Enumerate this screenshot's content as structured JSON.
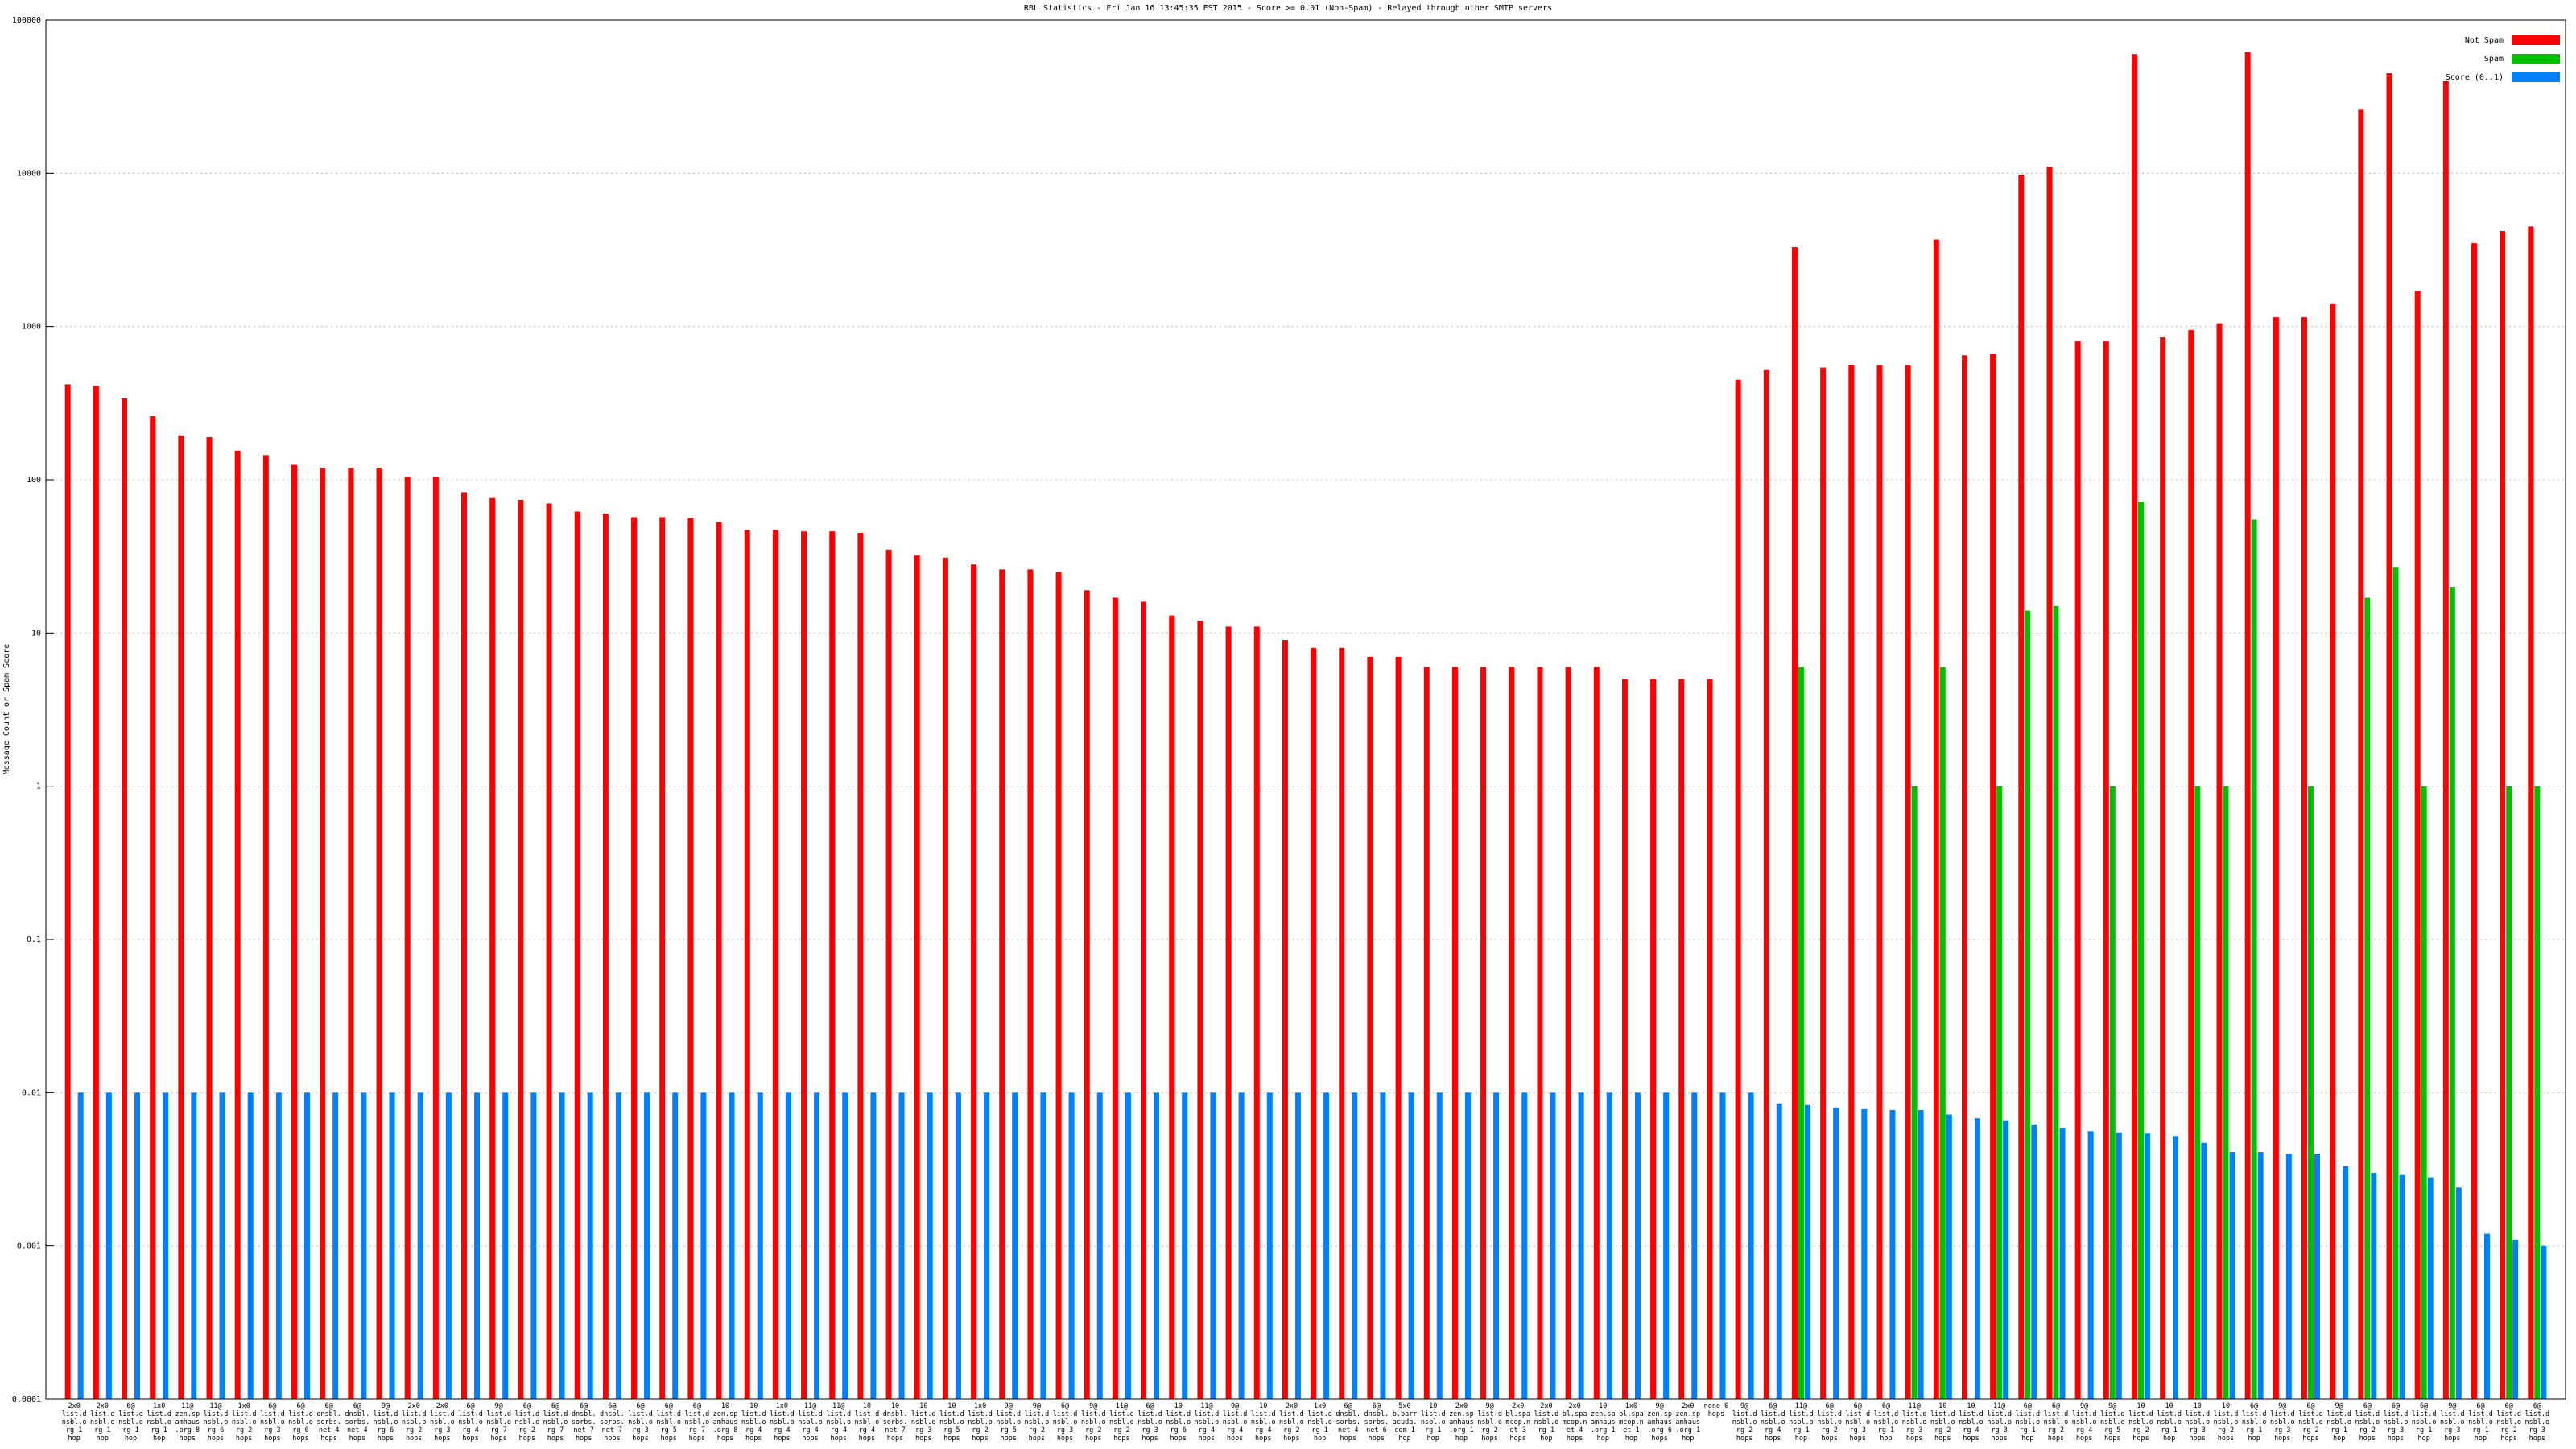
{
  "chart_data": {
    "type": "bar",
    "title": "RBL Statistics - Fri Jan 16 13:45:35 EST 2015 - Score >= 0.01 (Non-Spam) - Relayed through other SMTP servers",
    "y_label": "Message Count or Spam Score",
    "log": true,
    "grid": true,
    "legend": "top-right",
    "ylim": [
      0.0001,
      100000
    ],
    "yticks": [
      0.0001,
      0.001,
      0.01,
      0.1,
      1,
      10,
      100,
      1000,
      10000,
      100000
    ],
    "categories": [
      "2x0 list.dnsbl.org 1 hop",
      "2x0 list.dnsbl.org 1 hop",
      "6@ list.dnsbl.org 1 hop",
      "1x0 list.dnsbl.org 1 hop",
      "11@ zen.spamhaus.org 8 hops",
      "11@ list.dnsbl.org 6 hops",
      "1x0 list.dnsbl.org 2 hops",
      "6@ list.dnsbl.org 3 hops",
      "6@ list.dnsbl.org 6 hops",
      "6@ dnsbl.sorbs.net 4 hops",
      "6@ dnsbl.sorbs.net 4 hops",
      "9@ list.dnsbl.org 6 hops",
      "2x0 list.dnsbl.org 2 hops",
      "2x0 list.dnsbl.org 3 hops",
      "6@ list.dnsbl.org 4 hops",
      "9@ list.dnsbl.org 7 hops",
      "6@ list.dnsbl.org 2 hops",
      "6@ list.dnsbl.org 7 hops",
      "6@ dnsbl.sorbs.net 7 hops",
      "6@ dnsbl.sorbs.net 7 hops",
      "6@ list.dnsbl.org 3 hops",
      "6@ list.dnsbl.org 5 hops",
      "6@ list.dnsbl.org 7 hops",
      "10 zen.spamhaus.org 8 hops",
      "10 list.dnsbl.org 4 hops",
      "1x0 list.dnsbl.org 4 hops",
      "11@ list.dnsbl.org 4 hops",
      "11@ list.dnsbl.org 4 hops",
      "10 list.dnsbl.org 4 hops",
      "10 dnsbl.sorbs.net 7 hops",
      "10 list.dnsbl.org 3 hops",
      "10 list.dnsbl.org 5 hops",
      "1x0 list.dnsbl.org 2 hops",
      "9@ list.dnsbl.org 5 hops",
      "9@ list.dnsbl.org 2 hops",
      "6@ list.dnsbl.org 3 hops",
      "9@ list.dnsbl.org 2 hops",
      "11@ list.dnsbl.org 2 hops",
      "6@ list.dnsbl.org 3 hops",
      "10 list.dnsbl.org 6 hops",
      "11@ list.dnsbl.org 4 hops",
      "9@ list.dnsbl.org 4 hops",
      "10 list.dnsbl.org 4 hops",
      "2x0 list.dnsbl.org 2 hops",
      "1x0 list.dnsbl.org 1 hop",
      "6@ dnsbl.sorbs.net 4 hops",
      "6@ dnsbl.sorbs.net 6 hops",
      "5x0 b.barracuda.com 1 hop",
      "10 list.dnsbl.org 1 hop",
      "2x0 zen.spamhaus.org 1 hop",
      "9@ list.dnsbl.org 2 hops",
      "2x0 bl.spamcop.net 3 hops",
      "2x0 list.dnsbl.org 1 hop",
      "2x0 bl.spamcop.net 4 hops",
      "10 zen.spamhaus.org 1 hop",
      "1x0 bl.spamcop.net 1 hop",
      "9@ zen.spamhaus.org 6 hops",
      "2x0 zen.spamhaus.org 1 hop",
      "none 0 hops",
      "9@ list.dnsbl.org 2 hops",
      "6@ list.dnsbl.org 4 hops",
      "11@ list.dnsbl.org 1 hop",
      "6@ list.dnsbl.org 2 hops",
      "6@ list.dnsbl.org 3 hops",
      "6@ list.dnsbl.org 1 hop",
      "11@ list.dnsbl.org 3 hops",
      "10 list.dnsbl.org 2 hops",
      "10 list.dnsbl.org 4 hops",
      "11@ list.dnsbl.org 3 hops",
      "6@ list.dnsbl.org 1 hop",
      "6@ list.dnsbl.org 2 hops",
      "9@ list.dnsbl.org 4 hops",
      "9@ list.dnsbl.org 5 hops",
      "10 list.dnsbl.org 2 hops",
      "10 list.dnsbl.org 1 hop",
      "10 list.dnsbl.org 3 hops",
      "10 list.dnsbl.org 2 hops",
      "6@ list.dnsbl.org 1 hop",
      "9@ list.dnsbl.org 3 hops",
      "6@ list.dnsbl.org 2 hops",
      "9@ list.dnsbl.org 1 hop",
      "6@ list.dnsbl.org 2 hops",
      "6@ list.dnsbl.org 3 hops",
      "6@ list.dnsbl.org 1 hop",
      "9@ list.dnsbl.org 3 hops",
      "6@ list.dnsbl.org 1 hop",
      "6@ list.dnsbl.org 2 hops",
      "6@ list.dnsbl.org 3 hops"
    ],
    "series": [
      {
        "name": "Not Spam",
        "color": "#ff0000",
        "values": [
          420,
          410,
          340,
          260,
          195,
          190,
          155,
          145,
          125,
          120,
          120,
          120,
          105,
          105,
          83,
          76,
          74,
          70,
          62,
          60,
          57,
          57,
          56,
          53,
          47,
          47,
          46,
          46,
          45,
          35,
          32,
          31,
          28,
          26,
          26,
          25,
          19,
          17,
          16,
          13,
          12,
          11,
          11,
          9,
          8,
          8,
          7,
          7,
          6,
          6,
          6,
          6,
          6,
          6,
          6,
          5,
          5,
          5,
          5,
          450,
          520,
          3300,
          540,
          560,
          560,
          560,
          3700,
          650,
          660,
          9800,
          11000,
          800,
          800,
          60000,
          850,
          950,
          1050,
          62000,
          1150,
          1150,
          1400,
          26000,
          45000,
          1700,
          40000,
          3500,
          4200,
          4500
        ]
      },
      {
        "name": "Spam",
        "color": "#00c000",
        "values": [
          null,
          null,
          null,
          null,
          null,
          null,
          null,
          null,
          null,
          null,
          null,
          null,
          null,
          null,
          null,
          null,
          null,
          null,
          null,
          null,
          null,
          null,
          null,
          null,
          null,
          null,
          null,
          null,
          null,
          null,
          null,
          null,
          null,
          null,
          null,
          null,
          null,
          null,
          null,
          null,
          null,
          null,
          null,
          null,
          null,
          null,
          null,
          null,
          null,
          null,
          null,
          null,
          null,
          null,
          null,
          null,
          null,
          null,
          null,
          null,
          null,
          6,
          null,
          null,
          null,
          1,
          6,
          null,
          1,
          14,
          15,
          null,
          1,
          72,
          null,
          1,
          1,
          55,
          null,
          1,
          null,
          17,
          27,
          1,
          20,
          null,
          1,
          1
        ]
      },
      {
        "name": "Score (0..1)",
        "color": "#0080ff",
        "values": [
          0.01,
          0.01,
          0.01,
          0.01,
          0.01,
          0.01,
          0.01,
          0.01,
          0.01,
          0.01,
          0.01,
          0.01,
          0.01,
          0.01,
          0.01,
          0.01,
          0.01,
          0.01,
          0.01,
          0.01,
          0.01,
          0.01,
          0.01,
          0.01,
          0.01,
          0.01,
          0.01,
          0.01,
          0.01,
          0.01,
          0.01,
          0.01,
          0.01,
          0.01,
          0.01,
          0.01,
          0.01,
          0.01,
          0.01,
          0.01,
          0.01,
          0.01,
          0.01,
          0.01,
          0.01,
          0.01,
          0.01,
          0.01,
          0.01,
          0.01,
          0.01,
          0.01,
          0.01,
          0.01,
          0.01,
          0.01,
          0.01,
          0.01,
          0.01,
          0.01,
          0.0085,
          0.0083,
          0.008,
          0.0078,
          0.0077,
          0.0077,
          0.0072,
          0.0068,
          0.0066,
          0.0062,
          0.0059,
          0.0056,
          0.0055,
          0.0054,
          0.0052,
          0.0047,
          0.0041,
          0.0041,
          0.004,
          0.004,
          0.0033,
          0.003,
          0.0029,
          0.0028,
          0.0024,
          0.0012,
          0.0011,
          0.001
        ]
      }
    ]
  }
}
